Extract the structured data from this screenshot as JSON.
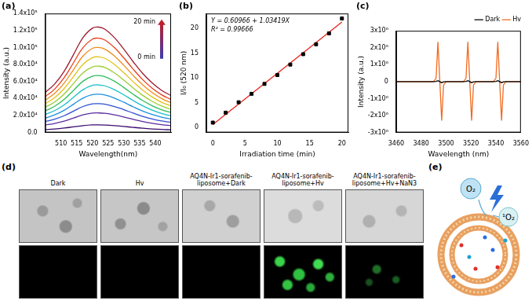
{
  "chart_data": [
    {
      "type": "line",
      "title": "(a)",
      "x_label": "Wavelength(nm)",
      "y_label": "Intensity (a.u.)",
      "x": [
        505,
        508,
        511,
        514,
        517,
        520,
        522,
        524,
        527,
        530,
        533,
        536,
        539,
        542,
        545
      ],
      "series": [
        {
          "color": "#3b0a6e",
          "values": [
            3420,
            4140,
            5220,
            6660,
            8100,
            8910,
            9000,
            8820,
            8100,
            7110,
            6030,
            5040,
            4230,
            3600,
            3150
          ]
        },
        {
          "color": "#5a2ca0",
          "values": [
            8740,
            10580,
            13340,
            17020,
            20700,
            22770,
            23000,
            22540,
            20700,
            18170,
            15410,
            12880,
            10810,
            9200,
            8050
          ]
        },
        {
          "color": "#2f4fd1",
          "values": [
            12920,
            15640,
            19720,
            25160,
            30600,
            33660,
            34000,
            33320,
            30600,
            26860,
            22780,
            19040,
            15980,
            13600,
            11900
          ]
        },
        {
          "color": "#1c8fe0",
          "values": [
            17100,
            20700,
            26100,
            33300,
            40500,
            44550,
            45000,
            44100,
            40500,
            35550,
            30150,
            25200,
            21150,
            18000,
            15750
          ]
        },
        {
          "color": "#17c0c9",
          "values": [
            21280,
            25760,
            32480,
            41440,
            50400,
            55440,
            56000,
            54880,
            50400,
            44240,
            37520,
            31360,
            26320,
            22400,
            19600
          ]
        },
        {
          "color": "#2ebd59",
          "values": [
            25460,
            30820,
            38860,
            49580,
            60300,
            66330,
            67000,
            65660,
            60300,
            52930,
            44890,
            37520,
            31490,
            26800,
            23450
          ]
        },
        {
          "color": "#9acd32",
          "values": [
            29640,
            35880,
            45240,
            57720,
            70200,
            77220,
            78000,
            76440,
            70200,
            61620,
            52260,
            43680,
            36660,
            31200,
            27300
          ]
        },
        {
          "color": "#e0c21a",
          "values": [
            33820,
            40940,
            51620,
            65860,
            80100,
            88110,
            89000,
            87220,
            80100,
            70310,
            59630,
            49840,
            41830,
            35600,
            31150
          ]
        },
        {
          "color": "#f08c1a",
          "values": [
            38000,
            46000,
            58000,
            74000,
            90000,
            99000,
            100000,
            98000,
            90000,
            79000,
            67000,
            56000,
            47000,
            40000,
            35000
          ]
        },
        {
          "color": "#e8401c",
          "values": [
            42180,
            51060,
            64380,
            82140,
            99900,
            109890,
            111000,
            108780,
            99900,
            87690,
            74370,
            62160,
            52170,
            44400,
            38850
          ]
        },
        {
          "color": "#9c1a2e",
          "values": [
            47120,
            57040,
            71920,
            91760,
            111600,
            122760,
            124000,
            121520,
            111600,
            97960,
            83080,
            69440,
            58280,
            49600,
            43400
          ]
        }
      ],
      "xlim": [
        505,
        545
      ],
      "xticks": [
        510,
        515,
        520,
        525,
        530,
        535,
        540
      ],
      "ylim": [
        0,
        140000
      ],
      "yticks": [
        {
          "value": 0,
          "label": "0.0"
        },
        {
          "value": 20000,
          "label": "2.0x10⁴"
        },
        {
          "value": 40000,
          "label": "4.0x10⁴"
        },
        {
          "value": 60000,
          "label": "6.0x10⁴"
        },
        {
          "value": 80000,
          "label": "8.0x10⁴"
        },
        {
          "value": 100000,
          "label": "1.0x10⁵"
        },
        {
          "value": 120000,
          "label": "1.2x10⁵"
        },
        {
          "value": 140000,
          "label": "1.4x10⁵"
        }
      ],
      "annotations": [
        "20 min",
        "0 min"
      ],
      "grid": false
    },
    {
      "type": "scatter",
      "title": "(b)",
      "x_label": "Irradiation time (min)",
      "y_label": "I/I₀ (520 nm)",
      "x": [
        0,
        2,
        4,
        6,
        8,
        10,
        12,
        14,
        16,
        18,
        20
      ],
      "series": [
        {
          "color": "#000000",
          "marker": "square",
          "values": [
            1.0,
            3.0,
            5.1,
            6.8,
            8.8,
            10.6,
            12.7,
            14.8,
            16.8,
            19.0,
            22.0
          ]
        },
        {
          "type": "line",
          "color": "#e8241c",
          "line_style": "solid",
          "x": [
            0,
            20
          ],
          "values": [
            0.61,
            21.29
          ]
        }
      ],
      "xlim": [
        -1,
        21
      ],
      "xticks": [
        0,
        5,
        10,
        15,
        20
      ],
      "ylim": [
        -1,
        23
      ],
      "yticks": [
        0,
        5,
        10,
        15,
        20
      ],
      "annotations": [
        "Y = 0.60966 + 1.03419X",
        "R² = 0.99666"
      ],
      "grid": false
    },
    {
      "type": "line",
      "title": "(c)",
      "x_label": "Wavelength (nm)",
      "y_label": "Intensity (a.u.)",
      "x": [
        3460,
        3480,
        3490,
        3492,
        3493.5,
        3495,
        3496.5,
        3498,
        3500,
        3514,
        3516,
        3517.5,
        3519,
        3520.5,
        3522,
        3524,
        3538,
        3540,
        3541.5,
        3543,
        3544.5,
        3546,
        3548,
        3560
      ],
      "series": [
        {
          "name": "Dark",
          "color": "#000000",
          "values": [
            0,
            0,
            0,
            10000,
            60000,
            0,
            -60000,
            -10000,
            0,
            0,
            10000,
            60000,
            0,
            -60000,
            -10000,
            0,
            0,
            10000,
            60000,
            0,
            -60000,
            -10000,
            0,
            0
          ]
        },
        {
          "name": "Hv",
          "color": "#f26a21",
          "values": [
            0,
            0,
            0,
            200000,
            2350000,
            0,
            -2300000,
            -200000,
            0,
            0,
            200000,
            2350000,
            0,
            -2300000,
            -200000,
            0,
            0,
            200000,
            2350000,
            0,
            -2300000,
            -200000,
            0,
            0
          ]
        }
      ],
      "xlim": [
        3460,
        3560
      ],
      "xticks": [
        3460,
        3480,
        3500,
        3520,
        3540,
        3560
      ],
      "ylim": [
        -3000000,
        3000000
      ],
      "yticks": [
        {
          "value": -3000000,
          "label": "-3x10⁶"
        },
        {
          "value": -2000000,
          "label": "-2x10⁶"
        },
        {
          "value": -1000000,
          "label": "-1x10⁶"
        },
        0,
        {
          "value": 1000000,
          "label": "1x10⁶"
        },
        {
          "value": 2000000,
          "label": "2x10⁶"
        },
        {
          "value": 3000000,
          "label": "3x10⁶"
        }
      ],
      "legend": "upper right",
      "grid": false
    }
  ],
  "panel_d": {
    "label": "(d)",
    "columns": [
      "Dark",
      "Hv",
      "AQ4N-Ir1-sorafenib-liposome+Dark",
      "AQ4N-Ir1-sorafenib-liposome+Hv",
      "AQ4N-Ir1-sorafenib-liposome+Hv+NaN3"
    ]
  },
  "panel_e": {
    "label": "(e)",
    "labels": [
      "O₂",
      "¹O₂"
    ]
  }
}
